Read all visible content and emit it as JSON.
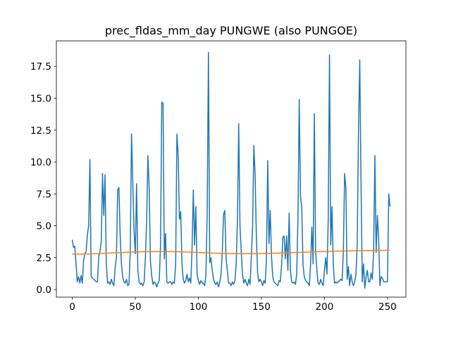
{
  "chart_data": {
    "type": "line",
    "title": "prec_fldas_mm_day PUNGWE  (also PUNGOE)",
    "x": [
      0,
      1,
      2,
      3,
      4,
      5,
      6,
      7,
      8,
      9,
      10,
      11,
      12,
      13,
      14,
      15,
      16,
      17,
      18,
      19,
      20,
      21,
      22,
      23,
      24,
      25,
      26,
      27,
      28,
      29,
      30,
      31,
      32,
      33,
      34,
      35,
      36,
      37,
      38,
      39,
      40,
      41,
      42,
      43,
      44,
      45,
      46,
      47,
      48,
      49,
      50,
      51,
      52,
      53,
      54,
      55,
      56,
      57,
      58,
      59,
      60,
      61,
      62,
      63,
      64,
      65,
      66,
      67,
      68,
      69,
      70,
      71,
      72,
      73,
      74,
      75,
      76,
      77,
      78,
      79,
      80,
      81,
      82,
      83,
      84,
      85,
      86,
      87,
      88,
      89,
      90,
      91,
      92,
      93,
      94,
      95,
      96,
      97,
      98,
      99,
      100,
      101,
      102,
      103,
      104,
      105,
      106,
      107,
      108,
      109,
      110,
      111,
      112,
      113,
      114,
      115,
      116,
      117,
      118,
      119,
      120,
      121,
      122,
      123,
      124,
      125,
      126,
      127,
      128,
      129,
      130,
      131,
      132,
      133,
      134,
      135,
      136,
      137,
      138,
      139,
      140,
      141,
      142,
      143,
      144,
      145,
      146,
      147,
      148,
      149,
      150,
      151,
      152,
      153,
      154,
      155,
      156,
      157,
      158,
      159,
      160,
      161,
      162,
      163,
      164,
      165,
      166,
      167,
      168,
      169,
      170,
      171,
      172,
      173,
      174,
      175,
      176,
      177,
      178,
      179,
      180,
      181,
      182,
      183,
      184,
      185,
      186,
      187,
      188,
      189,
      190,
      191,
      192,
      193,
      194,
      195,
      196,
      197,
      198,
      199,
      200,
      201,
      202,
      203,
      204,
      205,
      206,
      207,
      208,
      209,
      210,
      211,
      212,
      213,
      214,
      215,
      216,
      217,
      218,
      219,
      220,
      221,
      222,
      223,
      224,
      225,
      226,
      227,
      228,
      229,
      230,
      231,
      232,
      233,
      234,
      235,
      236,
      237,
      238,
      239,
      240,
      241,
      242,
      243,
      244,
      245,
      246,
      247,
      248,
      249,
      250,
      251,
      252
    ],
    "series": [
      {
        "color": "#1f77b4",
        "values": [
          3.9,
          3.3,
          3.4,
          2.0,
          0.6,
          1.0,
          0.5,
          1.1,
          0.5,
          2.3,
          2.8,
          3.0,
          4.3,
          5.0,
          10.2,
          1.0,
          0.9,
          0.8,
          0.7,
          0.6,
          0.6,
          2.6,
          3.0,
          3.8,
          9.1,
          5.8,
          9.0,
          2.0,
          0.5,
          0.6,
          0.4,
          0.8,
          0.5,
          0.3,
          1.7,
          2.5,
          7.8,
          8.0,
          4.2,
          2.0,
          1.0,
          0.6,
          0.5,
          0.8,
          0.3,
          0.4,
          3.0,
          12.2,
          8.5,
          4.6,
          2.8,
          8.3,
          1.5,
          0.6,
          0.4,
          0.5,
          0.3,
          0.6,
          2.5,
          5.5,
          10.5,
          7.9,
          2.2,
          1.1,
          0.4,
          0.6,
          0.5,
          0.2,
          0.5,
          0.7,
          3.5,
          14.7,
          14.6,
          2.4,
          4.4,
          0.6,
          0.5,
          0.6,
          0.6,
          0.4,
          0.6,
          0.5,
          2.0,
          12.2,
          10.5,
          5.5,
          6.1,
          2.0,
          0.8,
          0.5,
          0.7,
          1.2,
          0.6,
          0.9,
          0.5,
          3.2,
          7.8,
          3.5,
          6.5,
          1.2,
          0.7,
          0.4,
          0.7,
          0.5,
          0.5,
          0.3,
          1.2,
          6.0,
          18.6,
          2.1,
          2.5,
          1.5,
          0.8,
          0.5,
          0.4,
          0.6,
          0.2,
          0.6,
          1.2,
          3.0,
          5.9,
          6.2,
          2.4,
          1.5,
          0.5,
          0.5,
          0.3,
          0.6,
          0.4,
          0.7,
          2.0,
          5.5,
          13.0,
          5.0,
          3.0,
          1.2,
          0.5,
          0.8,
          0.5,
          0.3,
          0.8,
          0.4,
          2.5,
          4.8,
          11.3,
          9.0,
          4.2,
          1.3,
          0.6,
          0.8,
          0.6,
          0.3,
          0.7,
          0.5,
          2.4,
          10.1,
          3.6,
          6.2,
          2.6,
          1.0,
          0.6,
          0.5,
          0.4,
          0.3,
          0.7,
          0.6,
          1.9,
          4.1,
          4.2,
          2.4,
          4.2,
          1.5,
          6.0,
          1.5,
          0.6,
          0.5,
          0.6,
          0.4,
          1.2,
          5.5,
          14.9,
          7.3,
          6.5,
          2.0,
          1.0,
          0.7,
          0.6,
          0.5,
          0.3,
          2.0,
          4.9,
          2.0,
          13.8,
          3.0,
          1.5,
          0.5,
          0.4,
          0.8,
          0.5,
          0.3,
          1.5,
          2.5,
          1.2,
          5.5,
          18.4,
          3.5,
          6.5,
          2.0,
          0.5,
          0.6,
          0.5,
          0.6,
          0.7,
          0.8,
          0.7,
          3.0,
          9.1,
          8.0,
          0.8,
          1.8,
          0.3,
          1.2,
          0.6,
          0.3,
          0.6,
          1.2,
          3.6,
          12.5,
          18.0,
          8.5,
          0.6,
          2.0,
          0.1,
          1.0,
          1.5,
          0.6,
          0.6,
          1.3,
          0.8,
          3.0,
          10.5,
          2.9,
          5.8,
          4.0,
          0.3,
          1.0,
          0.9,
          0.6,
          0.6,
          0.6,
          0.6,
          7.5,
          6.5
        ]
      },
      {
        "color": "#ff7f0e",
        "values": [
          2.78,
          2.78,
          2.78,
          2.78,
          2.78,
          2.78,
          2.78,
          2.78,
          2.78,
          2.78,
          2.79,
          2.79,
          2.79,
          2.79,
          2.79,
          2.8,
          2.8,
          2.8,
          2.8,
          2.8,
          2.81,
          2.81,
          2.82,
          2.82,
          2.83,
          2.83,
          2.84,
          2.84,
          2.85,
          2.85,
          2.86,
          2.86,
          2.87,
          2.87,
          2.88,
          2.88,
          2.89,
          2.89,
          2.9,
          2.9,
          2.91,
          2.91,
          2.92,
          2.92,
          2.93,
          2.93,
          2.93,
          2.94,
          2.94,
          2.94,
          2.95,
          2.95,
          2.95,
          2.95,
          2.96,
          2.96,
          2.96,
          2.96,
          2.96,
          2.97,
          2.97,
          2.97,
          2.97,
          2.97,
          2.97,
          2.97,
          2.97,
          2.97,
          2.97,
          2.97,
          2.97,
          2.97,
          2.97,
          2.97,
          2.97,
          2.97,
          2.97,
          2.97,
          2.97,
          2.97,
          2.97,
          2.97,
          2.96,
          2.96,
          2.96,
          2.96,
          2.95,
          2.95,
          2.95,
          2.94,
          2.94,
          2.94,
          2.93,
          2.93,
          2.93,
          2.92,
          2.92,
          2.92,
          2.91,
          2.91,
          2.9,
          2.9,
          2.9,
          2.89,
          2.89,
          2.88,
          2.88,
          2.88,
          2.87,
          2.87,
          2.86,
          2.86,
          2.86,
          2.85,
          2.85,
          2.85,
          2.84,
          2.84,
          2.84,
          2.83,
          2.83,
          2.83,
          2.83,
          2.82,
          2.82,
          2.82,
          2.82,
          2.82,
          2.81,
          2.81,
          2.81,
          2.81,
          2.81,
          2.81,
          2.81,
          2.81,
          2.81,
          2.81,
          2.81,
          2.81,
          2.81,
          2.81,
          2.81,
          2.81,
          2.81,
          2.82,
          2.82,
          2.82,
          2.82,
          2.82,
          2.82,
          2.82,
          2.82,
          2.83,
          2.83,
          2.83,
          2.83,
          2.84,
          2.84,
          2.84,
          2.85,
          2.85,
          2.85,
          2.86,
          2.86,
          2.86,
          2.87,
          2.87,
          2.87,
          2.88,
          2.88,
          2.88,
          2.89,
          2.89,
          2.89,
          2.9,
          2.9,
          2.9,
          2.91,
          2.91,
          2.91,
          2.92,
          2.92,
          2.92,
          2.93,
          2.93,
          2.93,
          2.94,
          2.94,
          2.94,
          2.95,
          2.95,
          2.95,
          2.96,
          2.96,
          2.96,
          2.97,
          2.97,
          2.97,
          2.98,
          2.98,
          2.98,
          2.99,
          2.99,
          2.99,
          3.0,
          3.0,
          3.0,
          3.0,
          3.01,
          3.01,
          3.01,
          3.01,
          3.02,
          3.02,
          3.02,
          3.02,
          3.03,
          3.03,
          3.03,
          3.03,
          3.04,
          3.04,
          3.04,
          3.04,
          3.05,
          3.05,
          3.05,
          3.05,
          3.05,
          3.06,
          3.06,
          3.06,
          3.06,
          3.06,
          3.06,
          3.06,
          3.06,
          3.06,
          3.06,
          3.06,
          3.06,
          3.06,
          3.07,
          3.07,
          3.07,
          3.07,
          3.07,
          3.07,
          3.08,
          3.08,
          3.08,
          3.08
        ]
      }
    ],
    "xlim": [
      -12.6,
      264.6
    ],
    "xticks": [
      0,
      50,
      100,
      150,
      200,
      250
    ],
    "ylim": [
      -0.6,
      19.5
    ],
    "yticks": [
      {
        "value": 0,
        "label": "0.0"
      },
      2.5,
      {
        "value": 5,
        "label": "5.0"
      },
      7.5,
      {
        "value": 10,
        "label": "10.0"
      },
      12.5,
      {
        "value": 15,
        "label": "15.0"
      },
      17.5
    ]
  }
}
